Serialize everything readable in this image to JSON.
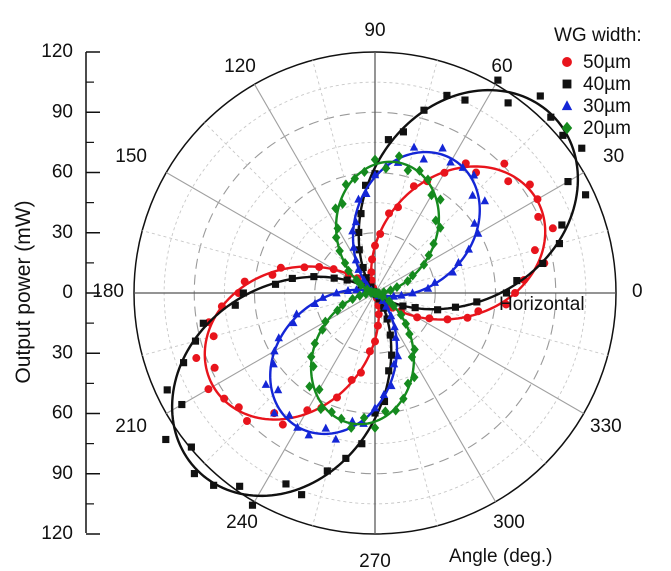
{
  "chart_data": {
    "type": "polar-scatter",
    "ylabel": "Output power (mW)",
    "r_ticks": [
      "120",
      "90",
      "60",
      "30",
      "0",
      "30",
      "60",
      "90",
      "120"
    ],
    "r_max": 120,
    "angle_ticks": [
      "0",
      "30",
      "60",
      "90",
      "120",
      "150",
      "180",
      "210",
      "240",
      "270",
      "300",
      "330"
    ],
    "angle_label": "Angle (deg.)",
    "annotation": "Horizontal",
    "legend_title": "WG width:",
    "legend_position": "top-right",
    "series": [
      {
        "name": "50µm",
        "color": "#e8141c",
        "marker": "circle",
        "peak_angle_deg": 30,
        "peak_power_mw": 93,
        "fit": true
      },
      {
        "name": "40µm",
        "color": "#111111",
        "marker": "square",
        "peak_angle_deg": 45,
        "peak_power_mw": 125,
        "fit": true
      },
      {
        "name": "30µm",
        "color": "#1426d6",
        "marker": "triangle",
        "peak_angle_deg": 60,
        "peak_power_mw": 77,
        "fit": true
      },
      {
        "name": "20µm",
        "color": "#158a1e",
        "marker": "diamond",
        "peak_angle_deg": 80,
        "peak_power_mw": 66,
        "fit": true
      }
    ]
  }
}
